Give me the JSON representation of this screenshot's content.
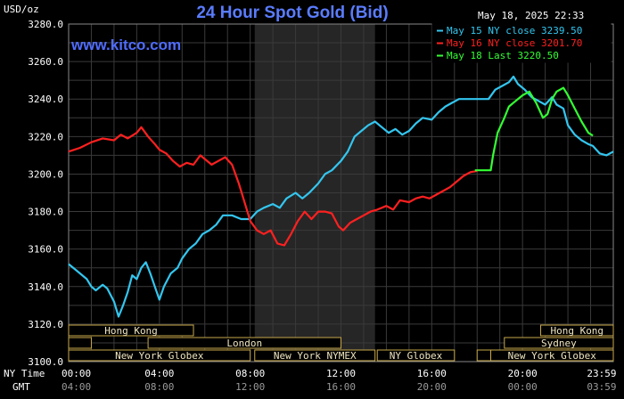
{
  "header": {
    "unit": "USD/oz",
    "title": "24 Hour Spot Gold (Bid)",
    "timestamp": "May 18, 2025 22:33",
    "website": "www.kitco.com"
  },
  "legend": [
    {
      "marker": "-",
      "text": "May 15 NY close 3239.50",
      "color": "#33c6ef"
    },
    {
      "marker": "-",
      "text": "May 16 NY close 3201.70",
      "color": "#ff2020"
    },
    {
      "marker": "-",
      "text": "May 18 Last 3220.50",
      "color": "#33ff33"
    }
  ],
  "x_rows": {
    "ny_label": "NY Time",
    "gmt_label": "GMT",
    "ny_ticks": [
      "00:00",
      "04:00",
      "08:00",
      "12:00",
      "16:00",
      "20:00",
      "23:59"
    ],
    "gmt_ticks": [
      "04:00",
      "08:00",
      "12:00",
      "16:00",
      "20:00",
      "00:00",
      "03:59"
    ]
  },
  "sessions": [
    {
      "label": "Hong Kong",
      "row": 0,
      "start": 0,
      "end": 5.5
    },
    {
      "label": "Hong Kong",
      "row": 0,
      "start": 20.8,
      "end": 24
    },
    {
      "label": "",
      "row": 1,
      "start": 0,
      "end": 1
    },
    {
      "label": "London",
      "row": 1,
      "start": 3.5,
      "end": 12
    },
    {
      "label": "Sydney",
      "row": 1,
      "start": 19.2,
      "end": 24
    },
    {
      "label": "New York Globex",
      "row": 2,
      "start": 0,
      "end": 8
    },
    {
      "label": "New York NYMEX",
      "row": 2,
      "start": 8.2,
      "end": 13.5
    },
    {
      "label": "NY Globex",
      "row": 2,
      "start": 13.6,
      "end": 17
    },
    {
      "label": "",
      "row": 2,
      "start": 18,
      "end": 18.6
    },
    {
      "label": "New York Globex",
      "row": 2,
      "start": 18.6,
      "end": 24
    }
  ],
  "chart_data": {
    "type": "line",
    "title": "24 Hour Spot Gold (Bid)",
    "ylabel": "USD/oz",
    "xlabel": "NY Time",
    "xlim": [
      0,
      24
    ],
    "ylim": [
      3100,
      3280
    ],
    "y_ticks": [
      3100,
      3120,
      3140,
      3160,
      3180,
      3200,
      3220,
      3240,
      3260,
      3280
    ],
    "y_tick_labels": [
      "3100.0",
      "3120.0",
      "3140.0",
      "3160.0",
      "3180.0",
      "3200.0",
      "3220.0",
      "3240.0",
      "3260.0",
      "3280.0"
    ],
    "x_ticks": [
      0,
      4,
      8,
      12,
      16,
      20,
      23.98
    ],
    "shaded_x_range": [
      8.2,
      13.5
    ],
    "grid": true,
    "legend_position": "top-right",
    "series": [
      {
        "name": "May 15 NY close 3239.50",
        "color": "#33c6ef",
        "points": [
          [
            0,
            3152
          ],
          [
            0.4,
            3148
          ],
          [
            0.8,
            3144
          ],
          [
            1.0,
            3140
          ],
          [
            1.2,
            3138
          ],
          [
            1.5,
            3141
          ],
          [
            1.7,
            3139
          ],
          [
            2.0,
            3132
          ],
          [
            2.2,
            3124
          ],
          [
            2.4,
            3130
          ],
          [
            2.6,
            3137
          ],
          [
            2.8,
            3146
          ],
          [
            3.0,
            3144
          ],
          [
            3.2,
            3150
          ],
          [
            3.4,
            3153
          ],
          [
            3.6,
            3147
          ],
          [
            3.8,
            3140
          ],
          [
            4.0,
            3133
          ],
          [
            4.2,
            3140
          ],
          [
            4.5,
            3147
          ],
          [
            4.8,
            3150
          ],
          [
            5.0,
            3155
          ],
          [
            5.3,
            3160
          ],
          [
            5.6,
            3163
          ],
          [
            5.9,
            3168
          ],
          [
            6.2,
            3170
          ],
          [
            6.5,
            3173
          ],
          [
            6.8,
            3178
          ],
          [
            7.2,
            3178
          ],
          [
            7.6,
            3176
          ],
          [
            8.0,
            3176
          ],
          [
            8.3,
            3180
          ],
          [
            8.6,
            3182
          ],
          [
            9.0,
            3184
          ],
          [
            9.3,
            3182
          ],
          [
            9.6,
            3187
          ],
          [
            10.0,
            3190
          ],
          [
            10.3,
            3187
          ],
          [
            10.6,
            3190
          ],
          [
            11.0,
            3195
          ],
          [
            11.3,
            3200
          ],
          [
            11.6,
            3202
          ],
          [
            12.0,
            3207
          ],
          [
            12.3,
            3212
          ],
          [
            12.6,
            3220
          ],
          [
            12.9,
            3223
          ],
          [
            13.2,
            3226
          ],
          [
            13.5,
            3228
          ],
          [
            13.8,
            3225
          ],
          [
            14.1,
            3222
          ],
          [
            14.4,
            3224
          ],
          [
            14.7,
            3221
          ],
          [
            15.0,
            3223
          ],
          [
            15.3,
            3227
          ],
          [
            15.6,
            3230
          ],
          [
            16.0,
            3229
          ],
          [
            16.3,
            3233
          ],
          [
            16.6,
            3236
          ],
          [
            16.9,
            3238
          ],
          [
            17.2,
            3240
          ],
          [
            18.5,
            3240
          ],
          [
            18.8,
            3245
          ],
          [
            19.1,
            3247
          ],
          [
            19.4,
            3249
          ],
          [
            19.6,
            3252
          ],
          [
            19.8,
            3248
          ],
          [
            20.1,
            3245
          ],
          [
            20.4,
            3241
          ],
          [
            20.7,
            3239
          ],
          [
            21.0,
            3237
          ],
          [
            21.3,
            3241
          ],
          [
            21.5,
            3237
          ],
          [
            21.8,
            3235
          ],
          [
            22.0,
            3226
          ],
          [
            22.3,
            3221
          ],
          [
            22.6,
            3218
          ],
          [
            22.9,
            3216
          ],
          [
            23.1,
            3215
          ],
          [
            23.4,
            3211
          ],
          [
            23.7,
            3210
          ],
          [
            24.0,
            3212
          ]
        ]
      },
      {
        "name": "May 16 NY close 3201.70",
        "color": "#ff2020",
        "points": [
          [
            0,
            3212
          ],
          [
            0.5,
            3214
          ],
          [
            1.0,
            3217
          ],
          [
            1.5,
            3219
          ],
          [
            2.0,
            3218
          ],
          [
            2.3,
            3221
          ],
          [
            2.6,
            3219
          ],
          [
            3.0,
            3222
          ],
          [
            3.2,
            3225
          ],
          [
            3.5,
            3220
          ],
          [
            3.8,
            3216
          ],
          [
            4.0,
            3213
          ],
          [
            4.3,
            3211
          ],
          [
            4.6,
            3207
          ],
          [
            4.9,
            3204
          ],
          [
            5.2,
            3206
          ],
          [
            5.5,
            3205
          ],
          [
            5.8,
            3210
          ],
          [
            6.0,
            3208
          ],
          [
            6.3,
            3205
          ],
          [
            6.6,
            3207
          ],
          [
            6.9,
            3209
          ],
          [
            7.2,
            3205
          ],
          [
            7.5,
            3195
          ],
          [
            7.8,
            3183
          ],
          [
            8.0,
            3175
          ],
          [
            8.3,
            3170
          ],
          [
            8.6,
            3168
          ],
          [
            8.9,
            3170
          ],
          [
            9.2,
            3163
          ],
          [
            9.5,
            3162
          ],
          [
            9.8,
            3168
          ],
          [
            10.1,
            3175
          ],
          [
            10.4,
            3180
          ],
          [
            10.7,
            3176
          ],
          [
            11.0,
            3180
          ],
          [
            11.3,
            3180
          ],
          [
            11.6,
            3179
          ],
          [
            11.9,
            3172
          ],
          [
            12.1,
            3170
          ],
          [
            12.4,
            3174
          ],
          [
            12.7,
            3176
          ],
          [
            13.0,
            3178
          ],
          [
            13.3,
            3180
          ],
          [
            13.6,
            3181
          ],
          [
            14.0,
            3183
          ],
          [
            14.3,
            3181
          ],
          [
            14.6,
            3186
          ],
          [
            15.0,
            3185
          ],
          [
            15.3,
            3187
          ],
          [
            15.6,
            3188
          ],
          [
            15.9,
            3187
          ],
          [
            16.2,
            3189
          ],
          [
            16.5,
            3191
          ],
          [
            16.8,
            3193
          ],
          [
            17.1,
            3196
          ],
          [
            17.4,
            3199
          ],
          [
            17.7,
            3201
          ],
          [
            18.0,
            3201.7
          ]
        ]
      },
      {
        "name": "May 18 Last 3220.50",
        "color": "#33ff33",
        "points": [
          [
            17.9,
            3202
          ],
          [
            18.6,
            3202
          ],
          [
            18.7,
            3210
          ],
          [
            18.9,
            3222
          ],
          [
            19.2,
            3230
          ],
          [
            19.4,
            3236
          ],
          [
            19.7,
            3239
          ],
          [
            20.0,
            3242
          ],
          [
            20.3,
            3244
          ],
          [
            20.6,
            3238
          ],
          [
            20.9,
            3230
          ],
          [
            21.1,
            3232
          ],
          [
            21.3,
            3240
          ],
          [
            21.5,
            3244
          ],
          [
            21.8,
            3246
          ],
          [
            22.0,
            3242
          ],
          [
            22.3,
            3235
          ],
          [
            22.6,
            3228
          ],
          [
            22.9,
            3222
          ],
          [
            23.1,
            3220.5
          ]
        ]
      }
    ]
  }
}
